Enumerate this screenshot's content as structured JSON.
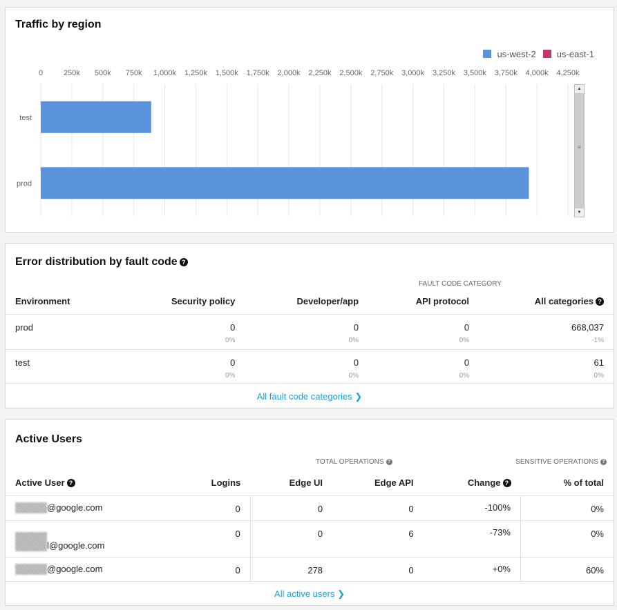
{
  "traffic": {
    "title": "Traffic by region",
    "legend": [
      {
        "name": "us-west-2",
        "color": "#5a92dc"
      },
      {
        "name": "us-east-1",
        "color": "#c2386e"
      }
    ]
  },
  "chart_data": {
    "type": "bar",
    "orientation": "horizontal",
    "title": "Traffic by region",
    "categories": [
      "test",
      "prod"
    ],
    "series": [
      {
        "name": "us-west-2",
        "color": "#5a92dc",
        "values": [
          890000,
          3935000
        ]
      },
      {
        "name": "us-east-1",
        "color": "#c2386e",
        "values": [
          0,
          0
        ]
      }
    ],
    "xlim": [
      0,
      4250000
    ],
    "xticks": [
      "0",
      "250k",
      "500k",
      "750k",
      "1,000k",
      "1,250k",
      "1,500k",
      "1,750k",
      "2,000k",
      "2,250k",
      "2,500k",
      "2,750k",
      "3,000k",
      "3,250k",
      "3,500k",
      "3,750k",
      "4,000k",
      "4,250k"
    ],
    "grid": true,
    "legend": "top-right"
  },
  "errors": {
    "title": "Error distribution by fault code",
    "category_header": "FAULT CODE CATEGORY",
    "columns": [
      "Environment",
      "Security policy",
      "Developer/app",
      "API protocol",
      "All categories"
    ],
    "rows": [
      {
        "env": "prod",
        "vals": [
          [
            "0",
            "0%"
          ],
          [
            "0",
            "0%"
          ],
          [
            "0",
            "0%"
          ],
          [
            "668,037",
            "-1%"
          ]
        ]
      },
      {
        "env": "test",
        "vals": [
          [
            "0",
            "0%"
          ],
          [
            "0",
            "0%"
          ],
          [
            "0",
            "0%"
          ],
          [
            "61",
            "0%"
          ]
        ]
      }
    ],
    "link": "All fault code categories ❯"
  },
  "users": {
    "title": "Active Users",
    "total_ops": "TOTAL OPERATIONS",
    "sensitive_ops": "SENSITIVE OPERATIONS",
    "columns": [
      "Active User",
      "Logins",
      "Edge UI",
      "Edge API",
      "Change",
      "% of total"
    ],
    "rows": [
      {
        "user": "@google.com",
        "logins": "0",
        "ui": "0",
        "api": "0",
        "change": "-100%",
        "pct": "0%"
      },
      {
        "user": "l@google.com",
        "logins": "0",
        "ui": "0",
        "api": "6",
        "change": "-73%",
        "pct": "0%"
      },
      {
        "user": "@google.com",
        "logins": "0",
        "ui": "278",
        "api": "0",
        "change": "+0%",
        "pct": "60%"
      }
    ],
    "link": "All active users ❯"
  }
}
